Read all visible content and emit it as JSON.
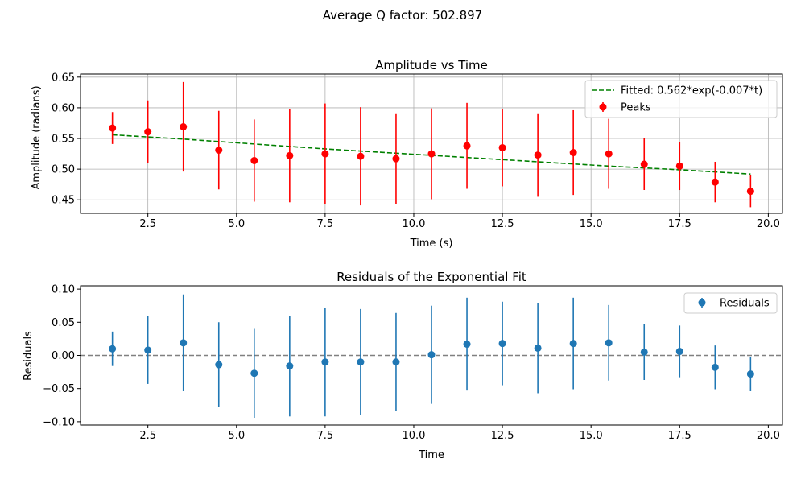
{
  "figure": {
    "suptitle": "Average Q factor: 502.897"
  },
  "chart_data": [
    {
      "type": "scatter",
      "title": "Amplitude vs Time",
      "xlabel": "Time (s)",
      "ylabel": "Amplitude (radians)",
      "xlim": [
        0.6,
        20.4
      ],
      "ylim": [
        0.428,
        0.655
      ],
      "xticks": [
        2.5,
        5.0,
        7.5,
        10.0,
        12.5,
        15.0,
        17.5,
        20.0
      ],
      "xtick_labels": [
        "2.5",
        "5.0",
        "7.5",
        "10.0",
        "12.5",
        "15.0",
        "17.5",
        "20.0"
      ],
      "yticks": [
        0.45,
        0.5,
        0.55,
        0.6,
        0.65
      ],
      "ytick_labels": [
        "0.45",
        "0.50",
        "0.55",
        "0.60",
        "0.65"
      ],
      "grid": true,
      "legend_position": "upper right",
      "series": [
        {
          "name": "Fitted: 0.562*exp(-0.007*t)",
          "kind": "line",
          "style": "dashed",
          "color": "#008000",
          "x": [
            1.5,
            3.5,
            5.5,
            7.5,
            9.5,
            11.5,
            13.5,
            15.5,
            17.5,
            19.5
          ],
          "y": [
            0.556,
            0.549,
            0.541,
            0.533,
            0.526,
            0.519,
            0.512,
            0.505,
            0.499,
            0.492
          ]
        },
        {
          "name": "Peaks",
          "kind": "errorbar",
          "color": "#ff0000",
          "x": [
            1.5,
            2.5,
            3.5,
            4.5,
            5.5,
            6.5,
            7.5,
            8.5,
            9.5,
            10.5,
            11.5,
            12.5,
            13.5,
            14.5,
            15.5,
            16.5,
            17.5,
            18.5,
            19.5
          ],
          "y": [
            0.567,
            0.561,
            0.569,
            0.531,
            0.514,
            0.522,
            0.525,
            0.521,
            0.517,
            0.525,
            0.538,
            0.535,
            0.523,
            0.527,
            0.525,
            0.508,
            0.505,
            0.479,
            0.464
          ],
          "yerr": [
            0.026,
            0.051,
            0.073,
            0.064,
            0.067,
            0.076,
            0.082,
            0.08,
            0.074,
            0.074,
            0.07,
            0.063,
            0.068,
            0.069,
            0.057,
            0.042,
            0.039,
            0.033,
            0.026
          ]
        }
      ]
    },
    {
      "type": "scatter",
      "title": "Residuals of the Exponential Fit",
      "xlabel": "Time",
      "ylabel": "Residuals",
      "xlim": [
        0.6,
        20.4
      ],
      "ylim": [
        -0.105,
        0.105
      ],
      "xticks": [
        2.5,
        5.0,
        7.5,
        10.0,
        12.5,
        15.0,
        17.5,
        20.0
      ],
      "xtick_labels": [
        "2.5",
        "5.0",
        "7.5",
        "10.0",
        "12.5",
        "15.0",
        "17.5",
        "20.0"
      ],
      "yticks": [
        -0.1,
        -0.05,
        0.0,
        0.05,
        0.1
      ],
      "ytick_labels": [
        "−0.10",
        "−0.05",
        "0.00",
        "0.05",
        "0.10"
      ],
      "grid": false,
      "legend_position": "upper right",
      "reference_line": {
        "y": 0,
        "style": "dashed",
        "color": "#808080"
      },
      "series": [
        {
          "name": "Residuals",
          "kind": "errorbar",
          "color": "#1f77b4",
          "x": [
            1.5,
            2.5,
            3.5,
            4.5,
            5.5,
            6.5,
            7.5,
            8.5,
            9.5,
            10.5,
            11.5,
            12.5,
            13.5,
            14.5,
            15.5,
            16.5,
            17.5,
            18.5,
            19.5
          ],
          "y": [
            0.01,
            0.008,
            0.019,
            -0.014,
            -0.027,
            -0.016,
            -0.01,
            -0.01,
            -0.01,
            0.001,
            0.017,
            0.018,
            0.011,
            0.018,
            0.019,
            0.005,
            0.006,
            -0.018,
            -0.028
          ],
          "yerr": [
            0.026,
            0.051,
            0.073,
            0.064,
            0.067,
            0.076,
            0.082,
            0.08,
            0.074,
            0.074,
            0.07,
            0.063,
            0.068,
            0.069,
            0.057,
            0.042,
            0.039,
            0.033,
            0.026
          ]
        }
      ]
    }
  ]
}
